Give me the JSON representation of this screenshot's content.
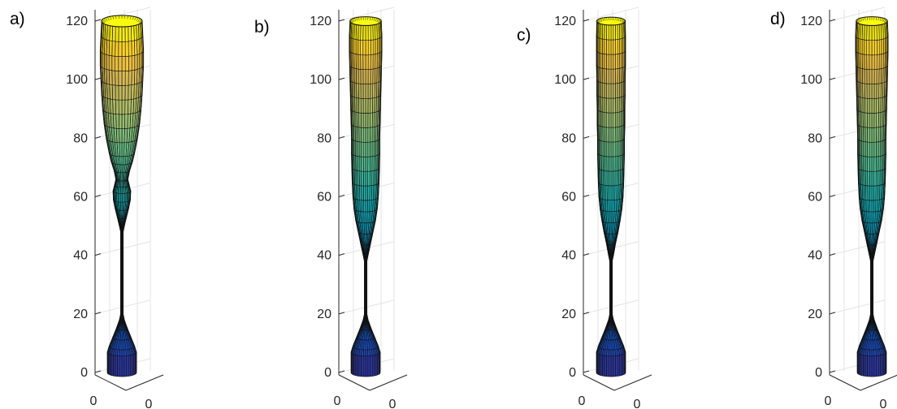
{
  "chart_data": [
    {
      "type": "surface",
      "panel_label": "a)",
      "zlim": [
        0,
        120
      ],
      "z_ticks": [
        "0",
        "20",
        "40",
        "60",
        "80",
        "100",
        "120"
      ],
      "x_ticks": [
        "0"
      ],
      "y_ticks": [
        "0"
      ],
      "grid": true,
      "colormap": "parula",
      "profile": {
        "z": [
          0,
          7,
          9,
          12,
          15,
          18,
          20,
          48,
          50,
          53,
          56,
          59,
          62,
          64,
          66,
          69,
          72,
          75,
          80,
          85,
          90,
          95,
          100,
          105,
          110,
          115,
          120
        ],
        "r": [
          4.1,
          4.1,
          3.6,
          2.6,
          1.6,
          0.7,
          0.35,
          0.35,
          0.7,
          1.3,
          1.9,
          2.4,
          2.5,
          2.1,
          1.7,
          2.2,
          3.0,
          3.6,
          4.4,
          5.0,
          5.4,
          5.7,
          5.9,
          6.1,
          6.1,
          5.9,
          5.7
        ]
      }
    },
    {
      "type": "surface",
      "panel_label": "b)",
      "zlim": [
        0,
        120
      ],
      "z_ticks": [
        "0",
        "20",
        "40",
        "60",
        "80",
        "100",
        "120"
      ],
      "x_ticks": [
        "0"
      ],
      "y_ticks": [
        "0"
      ],
      "grid": true,
      "colormap": "parula",
      "profile": {
        "z": [
          0,
          7,
          9,
          12,
          15,
          18,
          20,
          38,
          40,
          44,
          48,
          52,
          56,
          60,
          65,
          70,
          75,
          80,
          85,
          90,
          95,
          100,
          105,
          110,
          115,
          120
        ],
        "r": [
          4.1,
          4.1,
          3.6,
          2.6,
          1.6,
          0.7,
          0.35,
          0.35,
          0.7,
          1.4,
          2.1,
          2.8,
          3.3,
          3.6,
          3.8,
          3.9,
          4.0,
          4.0,
          4.1,
          4.2,
          4.3,
          4.4,
          4.5,
          4.6,
          4.6,
          4.4
        ]
      }
    },
    {
      "type": "surface",
      "panel_label": "c)",
      "zlim": [
        0,
        120
      ],
      "z_ticks": [
        "0",
        "20",
        "40",
        "60",
        "80",
        "100",
        "120"
      ],
      "x_ticks": [
        "0"
      ],
      "y_ticks": [
        "0"
      ],
      "grid": true,
      "colormap": "parula",
      "profile": {
        "z": [
          0,
          7,
          9,
          12,
          15,
          18,
          20,
          38,
          40,
          44,
          48,
          52,
          56,
          60,
          65,
          70,
          75,
          80,
          85,
          90,
          95,
          100,
          105,
          110,
          115,
          120
        ],
        "r": [
          4.1,
          4.1,
          3.6,
          2.6,
          1.6,
          0.7,
          0.35,
          0.35,
          0.7,
          1.3,
          2.0,
          2.6,
          3.1,
          3.4,
          3.6,
          3.7,
          3.8,
          3.8,
          3.9,
          3.9,
          4.0,
          4.0,
          4.1,
          4.1,
          4.1,
          4.0
        ]
      }
    },
    {
      "type": "surface",
      "panel_label": "d)",
      "zlim": [
        0,
        120
      ],
      "z_ticks": [
        "0",
        "20",
        "40",
        "60",
        "80",
        "100",
        "120"
      ],
      "x_ticks": [
        "0"
      ],
      "y_ticks": [
        "0"
      ],
      "grid": true,
      "colormap": "parula",
      "profile": {
        "z": [
          0,
          7,
          9,
          12,
          15,
          18,
          20,
          38,
          40,
          44,
          48,
          52,
          56,
          60,
          65,
          70,
          75,
          80,
          85,
          90,
          95,
          100,
          105,
          110,
          115,
          120
        ],
        "r": [
          4.1,
          4.1,
          3.6,
          2.6,
          1.6,
          0.7,
          0.35,
          0.35,
          0.7,
          1.4,
          2.1,
          2.8,
          3.3,
          3.6,
          3.8,
          3.9,
          4.0,
          4.0,
          4.1,
          4.2,
          4.3,
          4.4,
          4.5,
          4.6,
          4.6,
          4.4
        ]
      }
    }
  ]
}
